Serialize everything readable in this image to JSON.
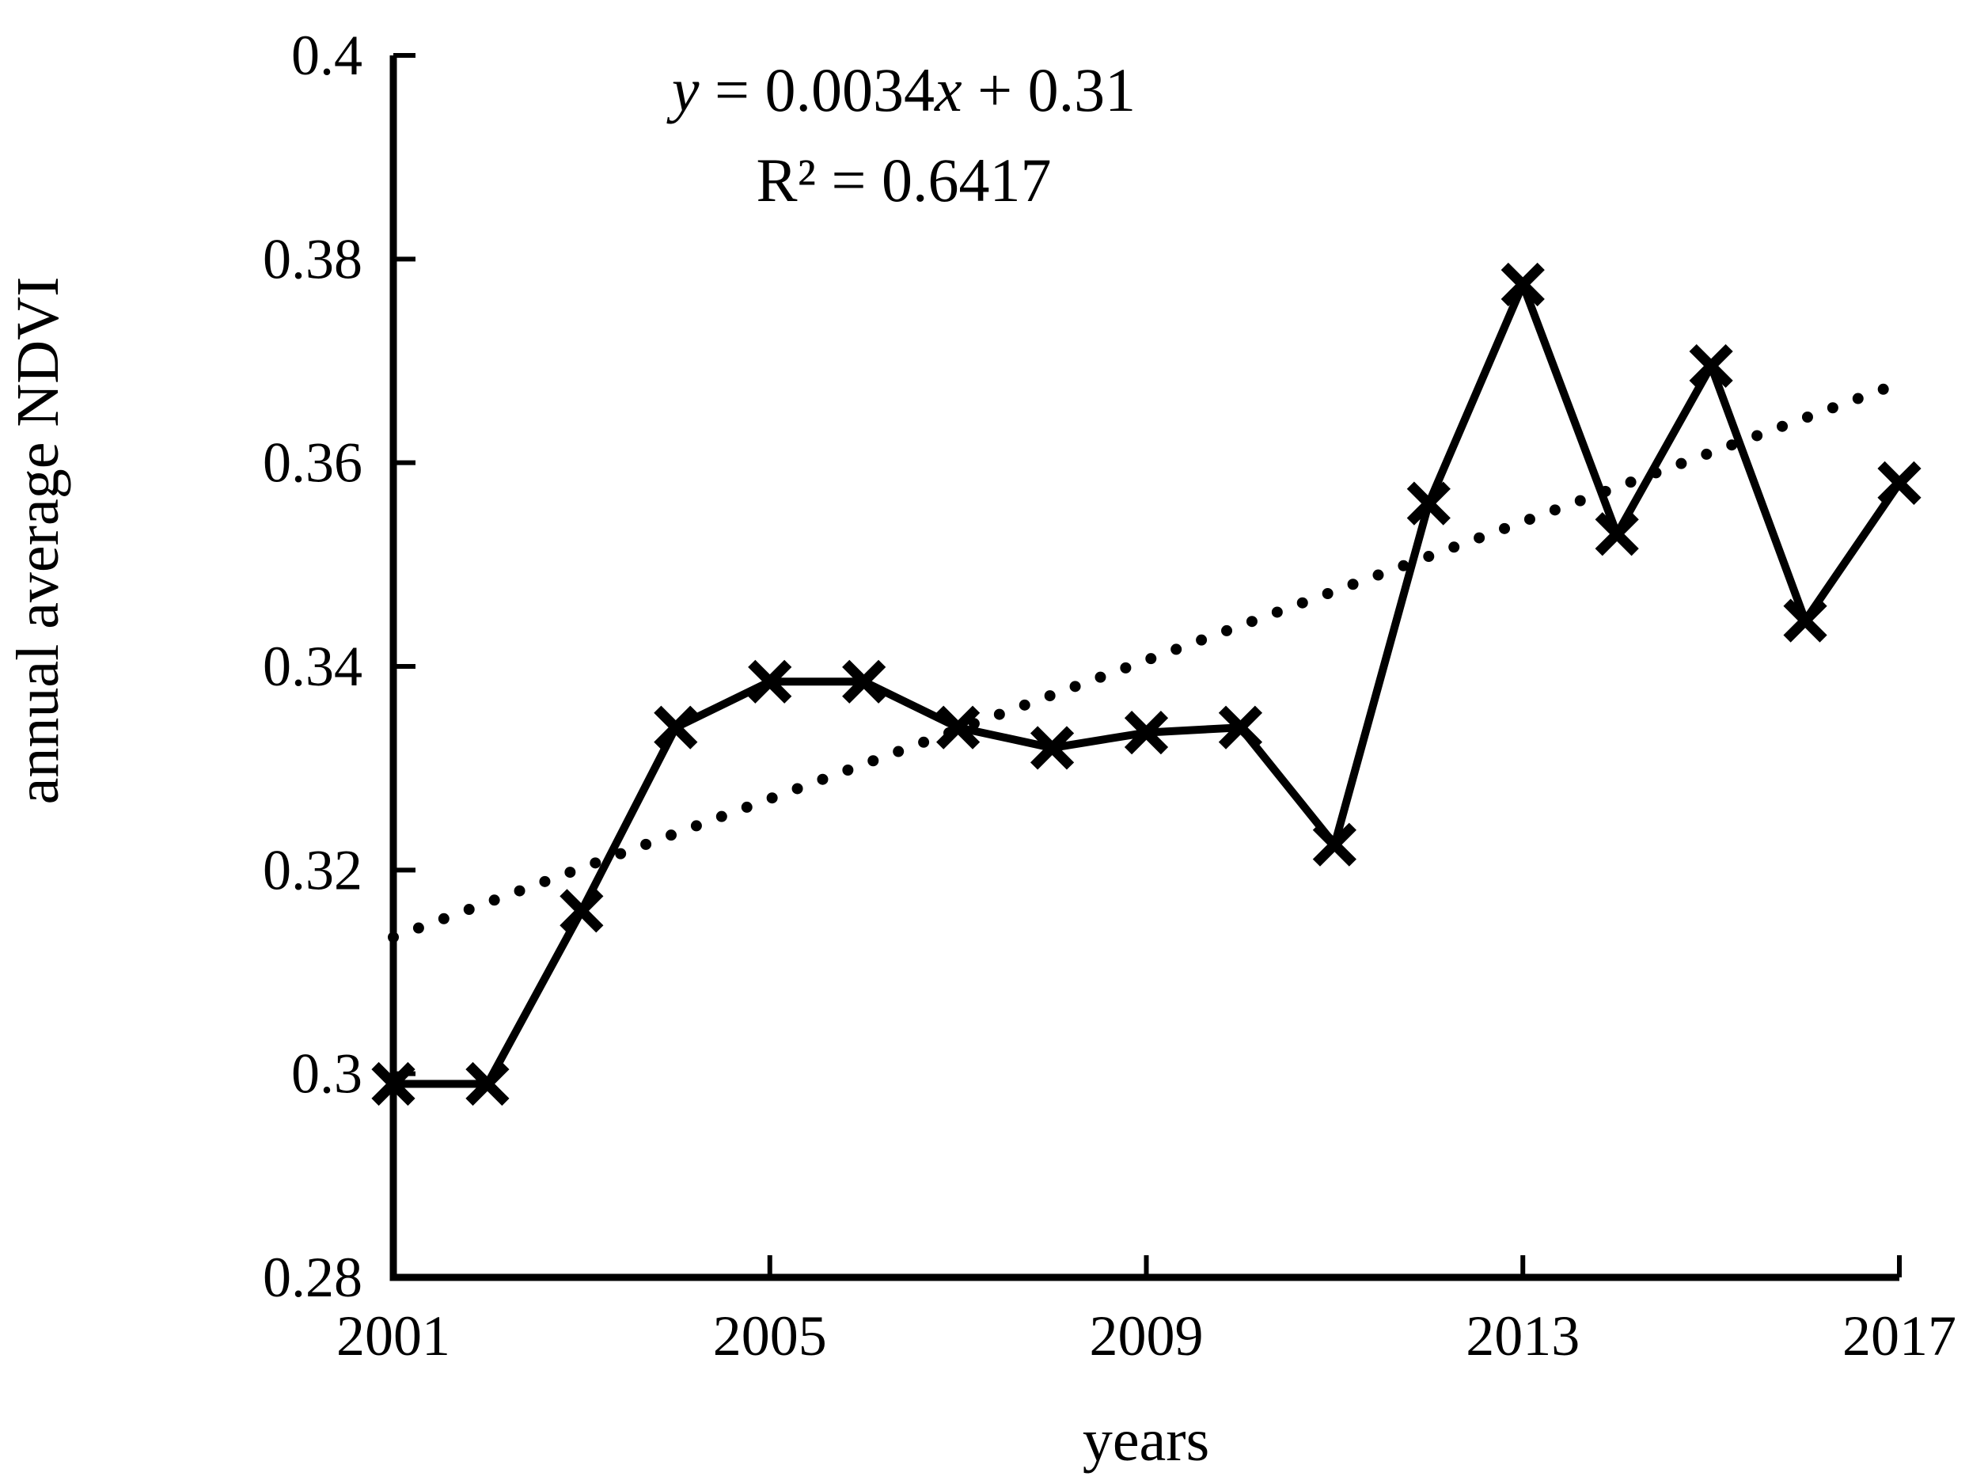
{
  "chart_data": {
    "type": "line",
    "title": "",
    "xlabel": "years",
    "ylabel": "annual average NDVI",
    "x": [
      2001,
      2002,
      2003,
      2004,
      2005,
      2006,
      2007,
      2008,
      2009,
      2010,
      2011,
      2012,
      2013,
      2014,
      2015,
      2016,
      2017
    ],
    "series": [
      {
        "name": "annual average NDVI",
        "marker": "x",
        "line_style": "solid",
        "color": "#000000",
        "values": [
          0.299,
          0.299,
          0.316,
          0.334,
          0.3385,
          0.3385,
          0.334,
          0.332,
          0.3335,
          0.334,
          0.3225,
          0.356,
          0.3775,
          0.353,
          0.3695,
          0.3445,
          0.358
        ]
      }
    ],
    "trendline": {
      "style": "dotted",
      "color": "#000000",
      "slope_per_year": 0.0034,
      "intercept_at_year2000": 0.31,
      "start_year": 2001,
      "end_year": 2017,
      "eq_y": "y",
      "eq_mid": " = 0.0034",
      "eq_x": "x",
      "eq_tail": " + 0.31",
      "r_squared": "R² = 0.6417"
    },
    "y_axis": {
      "range": [
        0.28,
        0.4
      ],
      "ticks": [
        {
          "value": 0.4,
          "label": "0.4"
        },
        {
          "value": 0.38,
          "label": "0.38"
        },
        {
          "value": 0.36,
          "label": "0.36"
        },
        {
          "value": 0.34,
          "label": "0.34"
        },
        {
          "value": 0.32,
          "label": "0.32"
        },
        {
          "value": 0.3,
          "label": "0.3"
        },
        {
          "value": 0.28,
          "label": "0.28"
        }
      ]
    },
    "x_axis": {
      "range": [
        2001,
        2017
      ],
      "ticks": [
        {
          "value": 2001,
          "label": "2001"
        },
        {
          "value": 2005,
          "label": "2005"
        },
        {
          "value": 2009,
          "label": "2009"
        },
        {
          "value": 2013,
          "label": "2013"
        },
        {
          "value": 2017,
          "label": "2017"
        }
      ]
    },
    "grid": false,
    "legend": false,
    "colors": {
      "foreground": "#000000",
      "background": "#ffffff"
    }
  }
}
